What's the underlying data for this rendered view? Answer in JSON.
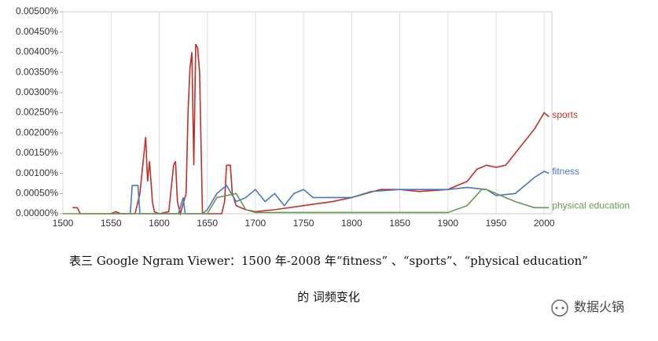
{
  "chart_data": {
    "type": "line",
    "xlim": [
      1500,
      2008
    ],
    "xticks": [
      1500,
      1550,
      1600,
      1650,
      1700,
      1750,
      1800,
      1850,
      1900,
      1950,
      2000
    ],
    "ylim": [
      0,
      0.005
    ],
    "yticks": [
      {
        "value": 0,
        "label": "0.00000%"
      },
      {
        "value": 0.0005,
        "label": "0.00050%"
      },
      {
        "value": 0.001,
        "label": "0.00100%"
      },
      {
        "value": 0.0015,
        "label": "0.00150%"
      },
      {
        "value": 0.002,
        "label": "0.00200%"
      },
      {
        "value": 0.0025,
        "label": "0.00250%"
      },
      {
        "value": 0.003,
        "label": "0.00300%"
      },
      {
        "value": 0.0035,
        "label": "0.00350%"
      },
      {
        "value": 0.004,
        "label": "0.00400%"
      },
      {
        "value": 0.0045,
        "label": "0.00450%"
      },
      {
        "value": 0.005,
        "label": "0.00500%"
      }
    ],
    "grid": true,
    "series": [
      {
        "name": "sports",
        "color": "#c0302a",
        "x": [
          1510,
          1515,
          1518,
          1550,
          1555,
          1560,
          1575,
          1580,
          1583,
          1586,
          1588,
          1590,
          1593,
          1595,
          1600,
          1610,
          1615,
          1617,
          1619,
          1622,
          1628,
          1630,
          1632,
          1634,
          1636,
          1638,
          1640,
          1642,
          1645,
          1665,
          1668,
          1670,
          1674,
          1676,
          1680,
          1690,
          1700,
          1720,
          1750,
          1780,
          1800,
          1830,
          1850,
          1870,
          1900,
          1920,
          1930,
          1940,
          1950,
          1960,
          1970,
          1980,
          1990,
          2000,
          2005
        ],
        "values": [
          0.00015,
          0.00015,
          0,
          0,
          5e-05,
          0,
          0,
          0.0005,
          0.0012,
          0.0019,
          0.0008,
          0.0013,
          0.0003,
          5e-05,
          0,
          5e-05,
          0.0012,
          0.0013,
          0.0003,
          0,
          0.0005,
          0.0025,
          0.0036,
          0.004,
          0.0012,
          0.0042,
          0.0041,
          0.0035,
          0,
          0,
          0.0003,
          0.0012,
          0.0012,
          0.0005,
          0.0002,
          0.0001,
          5e-05,
          0.0001,
          0.0002,
          0.0003,
          0.0004,
          0.0006,
          0.0006,
          0.00055,
          0.0006,
          0.0008,
          0.0011,
          0.0012,
          0.00115,
          0.0012,
          0.0015,
          0.0018,
          0.0021,
          0.0025,
          0.0024
        ]
      },
      {
        "name": "fitness",
        "color": "#4a78c0",
        "x": [
          1550,
          1570,
          1572,
          1578,
          1580,
          1620,
          1625,
          1627,
          1645,
          1650,
          1660,
          1670,
          1680,
          1690,
          1700,
          1710,
          1720,
          1730,
          1740,
          1750,
          1760,
          1780,
          1800,
          1820,
          1850,
          1880,
          1900,
          1920,
          1940,
          1950,
          1970,
          1990,
          2000,
          2005
        ],
        "values": [
          0,
          0,
          0.0007,
          0.0007,
          0,
          0,
          0.0004,
          0,
          0,
          0.0001,
          0.0005,
          0.0007,
          0.0003,
          0.0004,
          0.0006,
          0.0003,
          0.0005,
          0.0002,
          0.0005,
          0.0006,
          0.0004,
          0.0004,
          0.0004,
          0.00055,
          0.0006,
          0.0006,
          0.0006,
          0.00065,
          0.0006,
          0.00045,
          0.0005,
          0.0009,
          0.00105,
          0.001
        ]
      },
      {
        "name": "physical education",
        "color": "#6a9850",
        "x": [
          1500,
          1650,
          1660,
          1680,
          1690,
          1700,
          1800,
          1900,
          1920,
          1935,
          1940,
          1950,
          1970,
          1990,
          2005
        ],
        "values": [
          0,
          0,
          0.0004,
          0.0005,
          0.0001,
          3e-05,
          3e-05,
          3e-05,
          0.0002,
          0.0006,
          0.0006,
          0.0005,
          0.0003,
          0.00015,
          0.00015
        ]
      }
    ],
    "caption": [
      "表三 Google Ngram Viewer：1500 年-2008 年“fitness” 、“sports”、“physical education”",
      "的 词频变化"
    ],
    "watermark": "数据火锅"
  }
}
